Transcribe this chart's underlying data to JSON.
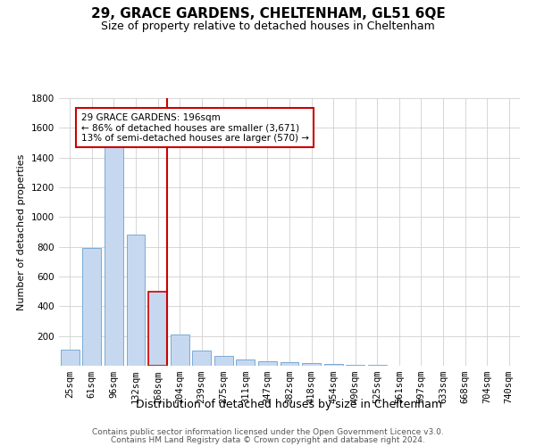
{
  "title": "29, GRACE GARDENS, CHELTENHAM, GL51 6QE",
  "subtitle": "Size of property relative to detached houses in Cheltenham",
  "xlabel": "Distribution of detached houses by size in Cheltenham",
  "ylabel": "Number of detached properties",
  "footer_line1": "Contains HM Land Registry data © Crown copyright and database right 2024.",
  "footer_line2": "Contains public sector information licensed under the Open Government Licence v3.0.",
  "categories": [
    "25sqm",
    "61sqm",
    "96sqm",
    "132sqm",
    "168sqm",
    "204sqm",
    "239sqm",
    "275sqm",
    "311sqm",
    "347sqm",
    "382sqm",
    "418sqm",
    "454sqm",
    "490sqm",
    "525sqm",
    "561sqm",
    "597sqm",
    "633sqm",
    "668sqm",
    "704sqm",
    "740sqm"
  ],
  "values": [
    110,
    790,
    1480,
    880,
    500,
    210,
    100,
    65,
    42,
    30,
    22,
    17,
    10,
    6,
    4,
    3,
    2,
    2,
    1,
    1,
    1
  ],
  "bar_color": "#c5d8f0",
  "bar_edge_color": "#7aaad4",
  "highlight_bar_index": 4,
  "highlight_bar_edge_color": "#cc0000",
  "vline_color": "#cc0000",
  "annotation_line1": "29 GRACE GARDENS: 196sqm",
  "annotation_line2": "← 86% of detached houses are smaller (3,671)",
  "annotation_line3": "13% of semi-detached houses are larger (570) →",
  "annotation_box_color": "#ffffff",
  "annotation_box_edge_color": "#cc0000",
  "ylim": [
    0,
    1800
  ],
  "yticks": [
    0,
    200,
    400,
    600,
    800,
    1000,
    1200,
    1400,
    1600,
    1800
  ],
  "background_color": "#ffffff",
  "grid_color": "#d0d0d0",
  "title_fontsize": 11,
  "subtitle_fontsize": 9,
  "ylabel_fontsize": 8,
  "xlabel_fontsize": 9,
  "tick_fontsize": 7.5,
  "footer_fontsize": 6.5
}
